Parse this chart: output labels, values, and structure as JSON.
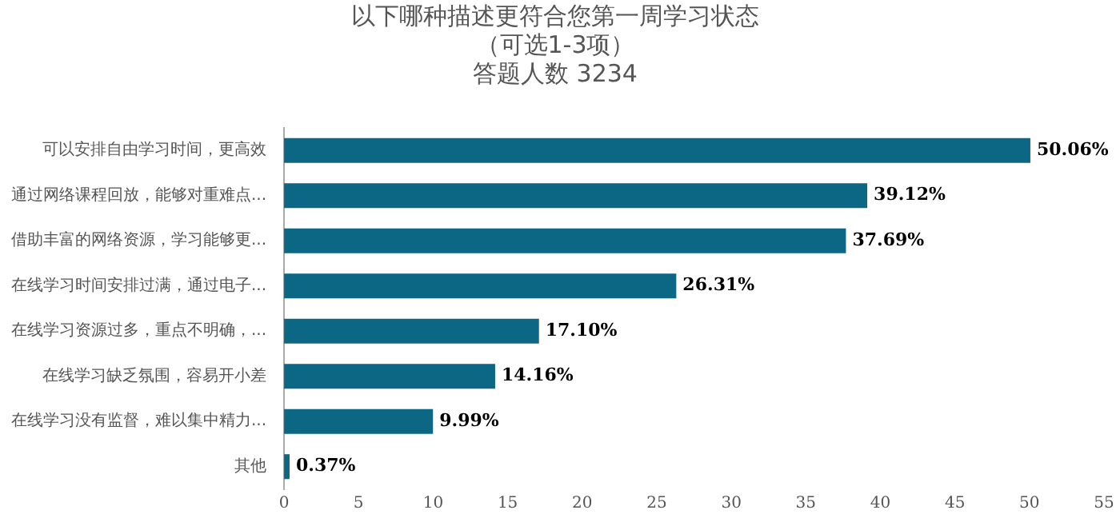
{
  "chart_data": {
    "type": "bar",
    "orientation": "horizontal",
    "title": "以下哪种描述更符合您第一周学习状态",
    "subtitle": "（可选1-3项）",
    "annotations": [
      "答题人数 3234"
    ],
    "categories": [
      "可以安排自由学习时间，更高效",
      "通过网络课程回放，能够对重难点...",
      "借助丰富的网络资源，学习能够更...",
      "在线学习时间安排过满，通过电子...",
      "在线学习资源过多，重点不明确，...",
      "在线学习缺乏氛围，容易开小差",
      "在线学习没有监督，难以集中精力...",
      "其他"
    ],
    "values": [
      50.06,
      39.12,
      37.69,
      26.31,
      17.1,
      14.16,
      9.99,
      0.37
    ],
    "value_labels": [
      "50.06%",
      "39.12%",
      "37.69%",
      "26.31%",
      "17.10%",
      "14.16%",
      "9.99%",
      "0.37%"
    ],
    "color": "#0b6784",
    "xlim": [
      0,
      55
    ],
    "xticks": [
      0,
      5,
      10,
      15,
      20,
      25,
      30,
      35,
      40,
      45,
      50,
      55
    ],
    "grid": false,
    "legend": false
  }
}
